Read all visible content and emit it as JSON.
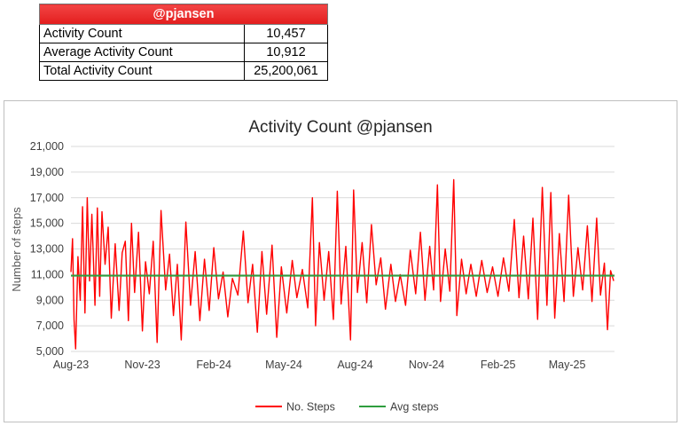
{
  "table": {
    "header": "@pjansen",
    "rows": [
      {
        "label": "Activity Count",
        "value": "10,457"
      },
      {
        "label": "Average Activity Count",
        "value": "10,912"
      },
      {
        "label": "Total Activity Count",
        "value": "25,200,061"
      }
    ]
  },
  "chart_data": {
    "type": "line",
    "title": "Activity Count @pjansen",
    "xlabel": "",
    "ylabel": "Number of steps",
    "ylim": [
      5000,
      21000
    ],
    "yticks": [
      "5,000",
      "7,000",
      "9,000",
      "11,000",
      "13,000",
      "15,000",
      "17,000",
      "19,000",
      "21,000"
    ],
    "xticks": [
      "Aug-23",
      "Nov-23",
      "Feb-24",
      "May-24",
      "Aug-24",
      "Nov-24",
      "Feb-25",
      "May-25"
    ],
    "grid": true,
    "legend_position": "bottom",
    "x_start": "2023-08-01",
    "x_end": "2025-07-01",
    "series": [
      {
        "name": "No. Steps",
        "color": "#ff0000",
        "points": [
          [
            "2023-08-01",
            11200
          ],
          [
            "2023-08-03",
            13800
          ],
          [
            "2023-08-05",
            7500
          ],
          [
            "2023-08-07",
            5200
          ],
          [
            "2023-08-10",
            12400
          ],
          [
            "2023-08-13",
            9000
          ],
          [
            "2023-08-16",
            16300
          ],
          [
            "2023-08-19",
            8000
          ],
          [
            "2023-08-22",
            17000
          ],
          [
            "2023-08-25",
            10500
          ],
          [
            "2023-08-28",
            15700
          ],
          [
            "2023-09-01",
            8600
          ],
          [
            "2023-09-04",
            16200
          ],
          [
            "2023-09-07",
            9300
          ],
          [
            "2023-09-10",
            15900
          ],
          [
            "2023-09-14",
            11800
          ],
          [
            "2023-09-18",
            14700
          ],
          [
            "2023-09-22",
            7600
          ],
          [
            "2023-09-27",
            13400
          ],
          [
            "2023-10-02",
            8200
          ],
          [
            "2023-10-06",
            12700
          ],
          [
            "2023-10-10",
            13600
          ],
          [
            "2023-10-14",
            7400
          ],
          [
            "2023-10-18",
            15000
          ],
          [
            "2023-10-22",
            9600
          ],
          [
            "2023-10-27",
            14300
          ],
          [
            "2023-11-01",
            6600
          ],
          [
            "2023-11-05",
            12000
          ],
          [
            "2023-11-10",
            9500
          ],
          [
            "2023-11-15",
            13600
          ],
          [
            "2023-11-20",
            5700
          ],
          [
            "2023-11-25",
            16000
          ],
          [
            "2023-12-01",
            9800
          ],
          [
            "2023-12-06",
            12600
          ],
          [
            "2023-12-11",
            7800
          ],
          [
            "2023-12-16",
            11800
          ],
          [
            "2023-12-21",
            5900
          ],
          [
            "2023-12-27",
            15100
          ],
          [
            "2024-01-02",
            8600
          ],
          [
            "2024-01-08",
            12800
          ],
          [
            "2024-01-14",
            7400
          ],
          [
            "2024-01-20",
            12200
          ],
          [
            "2024-01-26",
            8200
          ],
          [
            "2024-02-01",
            13100
          ],
          [
            "2024-02-07",
            9100
          ],
          [
            "2024-02-13",
            11200
          ],
          [
            "2024-02-19",
            7700
          ],
          [
            "2024-02-25",
            10700
          ],
          [
            "2024-03-03",
            9400
          ],
          [
            "2024-03-10",
            14400
          ],
          [
            "2024-03-16",
            8800
          ],
          [
            "2024-03-22",
            11800
          ],
          [
            "2024-03-28",
            6500
          ],
          [
            "2024-04-03",
            12800
          ],
          [
            "2024-04-09",
            7900
          ],
          [
            "2024-04-16",
            13300
          ],
          [
            "2024-04-22",
            6100
          ],
          [
            "2024-04-28",
            11600
          ],
          [
            "2024-05-05",
            8000
          ],
          [
            "2024-05-12",
            12100
          ],
          [
            "2024-05-18",
            9200
          ],
          [
            "2024-05-25",
            11400
          ],
          [
            "2024-06-01",
            8400
          ],
          [
            "2024-06-07",
            17000
          ],
          [
            "2024-06-11",
            7000
          ],
          [
            "2024-06-16",
            13500
          ],
          [
            "2024-06-22",
            9000
          ],
          [
            "2024-06-28",
            12800
          ],
          [
            "2024-07-04",
            7500
          ],
          [
            "2024-07-09",
            17500
          ],
          [
            "2024-07-14",
            8700
          ],
          [
            "2024-07-20",
            13200
          ],
          [
            "2024-07-26",
            5900
          ],
          [
            "2024-07-30",
            17600
          ],
          [
            "2024-08-04",
            9600
          ],
          [
            "2024-08-10",
            13500
          ],
          [
            "2024-08-16",
            8800
          ],
          [
            "2024-08-22",
            14900
          ],
          [
            "2024-08-28",
            10200
          ],
          [
            "2024-09-03",
            12300
          ],
          [
            "2024-09-09",
            8300
          ],
          [
            "2024-09-16",
            11800
          ],
          [
            "2024-09-22",
            8900
          ],
          [
            "2024-09-28",
            11000
          ],
          [
            "2024-10-05",
            8600
          ],
          [
            "2024-10-11",
            12900
          ],
          [
            "2024-10-18",
            9500
          ],
          [
            "2024-10-24",
            14300
          ],
          [
            "2024-10-30",
            9000
          ],
          [
            "2024-11-05",
            13200
          ],
          [
            "2024-11-10",
            9800
          ],
          [
            "2024-11-15",
            18000
          ],
          [
            "2024-11-19",
            8900
          ],
          [
            "2024-11-25",
            13000
          ],
          [
            "2024-12-01",
            9700
          ],
          [
            "2024-12-06",
            18400
          ],
          [
            "2024-12-10",
            7800
          ],
          [
            "2024-12-16",
            12200
          ],
          [
            "2024-12-22",
            9500
          ],
          [
            "2024-12-28",
            11800
          ],
          [
            "2025-01-04",
            9300
          ],
          [
            "2025-01-11",
            12100
          ],
          [
            "2025-01-18",
            9600
          ],
          [
            "2025-01-25",
            11600
          ],
          [
            "2025-02-01",
            9300
          ],
          [
            "2025-02-08",
            12300
          ],
          [
            "2025-02-15",
            9700
          ],
          [
            "2025-02-22",
            15300
          ],
          [
            "2025-02-28",
            9200
          ],
          [
            "2025-03-06",
            14000
          ],
          [
            "2025-03-12",
            9100
          ],
          [
            "2025-03-18",
            15400
          ],
          [
            "2025-03-24",
            7500
          ],
          [
            "2025-03-30",
            17800
          ],
          [
            "2025-04-05",
            8600
          ],
          [
            "2025-04-10",
            17400
          ],
          [
            "2025-04-15",
            7600
          ],
          [
            "2025-04-21",
            14200
          ],
          [
            "2025-04-27",
            8900
          ],
          [
            "2025-05-03",
            17200
          ],
          [
            "2025-05-09",
            9300
          ],
          [
            "2025-05-15",
            13100
          ],
          [
            "2025-05-21",
            9800
          ],
          [
            "2025-05-27",
            14800
          ],
          [
            "2025-06-02",
            8900
          ],
          [
            "2025-06-08",
            15400
          ],
          [
            "2025-06-13",
            9400
          ],
          [
            "2025-06-18",
            11900
          ],
          [
            "2025-06-22",
            6700
          ],
          [
            "2025-06-26",
            11300
          ],
          [
            "2025-06-30",
            10500
          ]
        ]
      },
      {
        "name": "Avg steps",
        "color": "#2e9e3e",
        "points": [
          [
            "2023-08-01",
            10912
          ],
          [
            "2025-07-01",
            10912
          ]
        ]
      }
    ]
  }
}
